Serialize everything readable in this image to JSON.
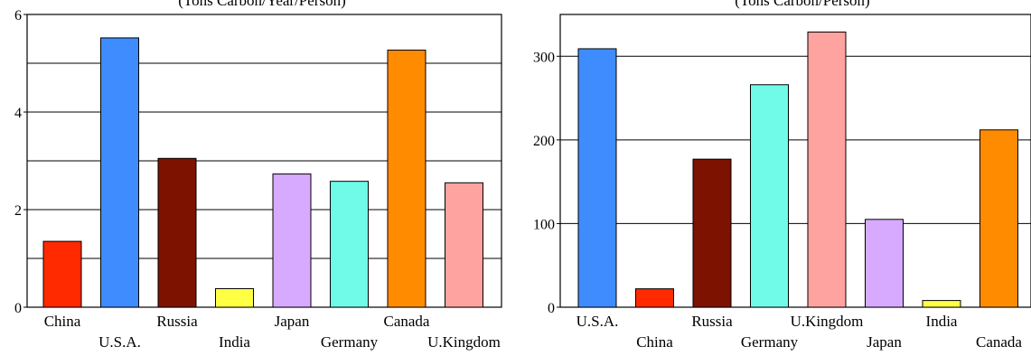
{
  "chart_data": [
    {
      "type": "bar",
      "title": "(Tons Carbon/Year/Person)",
      "categories": [
        "China",
        "U.S.A.",
        "Russia",
        "India",
        "Japan",
        "Germany",
        "Canada",
        "U.Kingdom"
      ],
      "values": [
        1.35,
        5.52,
        3.05,
        0.38,
        2.73,
        2.58,
        5.27,
        2.55
      ],
      "colors": [
        "#ff2a00",
        "#3f8cff",
        "#7d1200",
        "#ffff44",
        "#d8aaff",
        "#6ffbe8",
        "#ff8c00",
        "#ffa3a0"
      ],
      "ylim": [
        0,
        6
      ],
      "yticks": [
        0,
        2,
        4,
        6
      ],
      "gridlines": [
        1,
        2,
        3,
        4,
        5
      ],
      "ytick_labels": [
        "0",
        "2",
        "4",
        "6"
      ]
    },
    {
      "type": "bar",
      "title": "(Tons Carbon/Person)",
      "categories": [
        "U.S.A.",
        "China",
        "Russia",
        "Germany",
        "U.Kingdom",
        "Japan",
        "India",
        "Canada"
      ],
      "values": [
        309,
        22,
        177,
        266,
        329,
        105,
        8,
        212
      ],
      "colors": [
        "#3f8cff",
        "#ff2a00",
        "#7d1200",
        "#6ffbe8",
        "#ffa3a0",
        "#d8aaff",
        "#ffff44",
        "#ff8c00"
      ],
      "ylim": [
        0,
        350
      ],
      "yticks": [
        0,
        100,
        200,
        300
      ],
      "gridlines": [
        100,
        200,
        300
      ],
      "ytick_labels": [
        "0",
        "100",
        "200",
        "300"
      ]
    }
  ]
}
